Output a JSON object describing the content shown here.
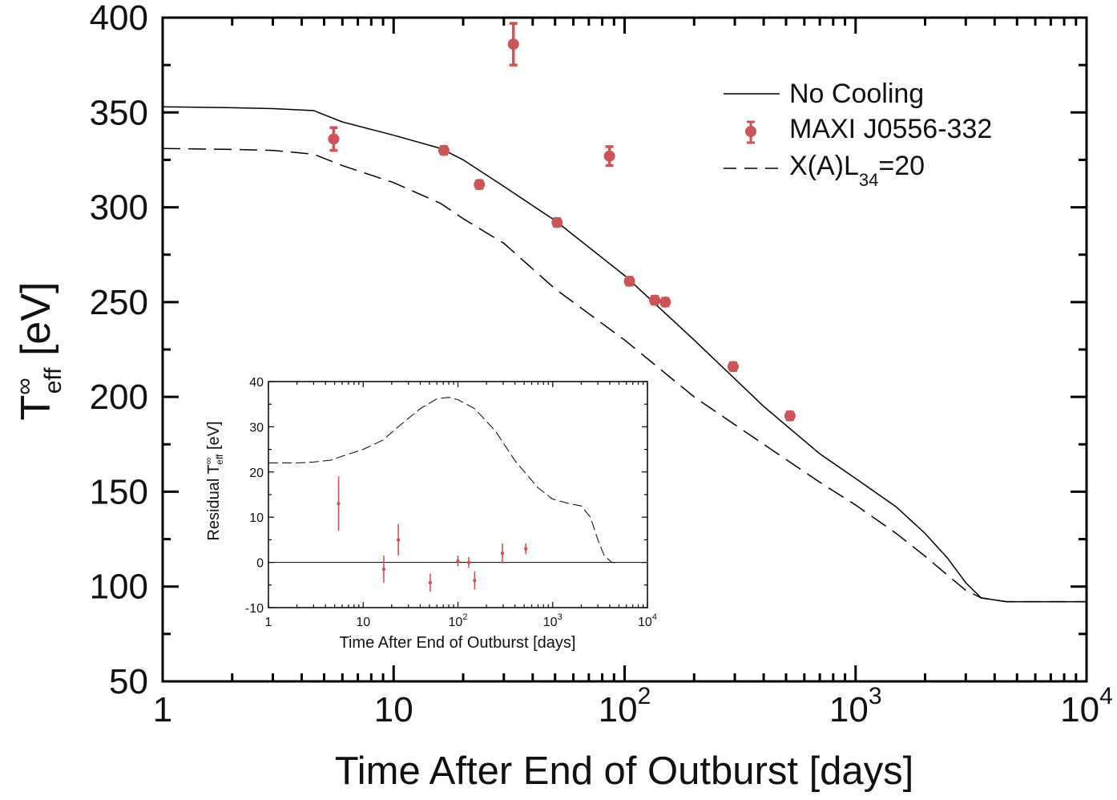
{
  "chart_data": [
    {
      "type": "line",
      "name": "main-panel",
      "xscale": "log",
      "xlim": [
        1,
        10000
      ],
      "ylim": [
        50,
        400
      ],
      "xlabel": "Time After End of Outburst [days]",
      "ylabel": {
        "main": "T",
        "sup": "∞",
        "sub": "eff",
        "unit": " [eV]"
      },
      "xticks": [
        {
          "value": 1,
          "base": "1",
          "exp": ""
        },
        {
          "value": 10,
          "base": "10",
          "exp": ""
        },
        {
          "value": 100,
          "base": "10",
          "exp": "2"
        },
        {
          "value": 1000,
          "base": "10",
          "exp": "3"
        },
        {
          "value": 10000,
          "base": "10",
          "exp": "4"
        }
      ],
      "yticks": [
        50,
        100,
        150,
        200,
        250,
        300,
        350,
        400
      ],
      "legend": {
        "position": "top-right",
        "entries": [
          {
            "label": "No Cooling",
            "style": "solid"
          },
          {
            "label": "MAXI J0556-332",
            "style": "marker"
          },
          {
            "label": "X(A)L",
            "sub": "34",
            "suffix": "=20",
            "style": "dashed"
          }
        ]
      },
      "series": [
        {
          "name": "No Cooling",
          "style": "solid",
          "color": "#000000",
          "points": [
            [
              1,
              353
            ],
            [
              2,
              352.5
            ],
            [
              3,
              352
            ],
            [
              4.5,
              351
            ],
            [
              6,
              345
            ],
            [
              10,
              338
            ],
            [
              16,
              331
            ],
            [
              20,
              325
            ],
            [
              30,
              311
            ],
            [
              50,
              293
            ],
            [
              100,
              264
            ],
            [
              200,
              230
            ],
            [
              400,
              195
            ],
            [
              700,
              170
            ],
            [
              1000,
              157
            ],
            [
              1500,
              142
            ],
            [
              2000,
              128
            ],
            [
              2500,
              115
            ],
            [
              3000,
              102
            ],
            [
              3500,
              94
            ],
            [
              4500,
              92
            ],
            [
              10000,
              92
            ]
          ]
        },
        {
          "name": "X(A)L34=20",
          "style": "dashed",
          "color": "#000000",
          "points": [
            [
              1,
              331
            ],
            [
              2,
              330.5
            ],
            [
              3,
              330
            ],
            [
              4.5,
              328
            ],
            [
              6,
              322
            ],
            [
              10,
              313
            ],
            [
              16,
              302
            ],
            [
              20,
              294
            ],
            [
              30,
              281
            ],
            [
              50,
              257
            ],
            [
              100,
              230
            ],
            [
              200,
              200
            ],
            [
              400,
              175
            ],
            [
              700,
              155
            ],
            [
              1000,
              143
            ],
            [
              1500,
              128
            ],
            [
              2000,
              116
            ],
            [
              2500,
              106
            ],
            [
              3000,
              98
            ],
            [
              3500,
              94
            ],
            [
              4500,
              92
            ],
            [
              10000,
              92
            ]
          ]
        },
        {
          "name": "MAXI J0556-332",
          "style": "marker",
          "color": "#cc5555",
          "points": [
            {
              "x": 5.5,
              "y": 336,
              "err": 6
            },
            {
              "x": 16.5,
              "y": 330,
              "err": 2
            },
            {
              "x": 23.5,
              "y": 312,
              "err": 2
            },
            {
              "x": 33,
              "y": 386,
              "err": 11
            },
            {
              "x": 51,
              "y": 292,
              "err": 2
            },
            {
              "x": 86,
              "y": 327,
              "err": 5
            },
            {
              "x": 105,
              "y": 261,
              "err": 2
            },
            {
              "x": 135,
              "y": 251,
              "err": 2
            },
            {
              "x": 150,
              "y": 250,
              "err": 2
            },
            {
              "x": 295,
              "y": 216,
              "err": 2
            },
            {
              "x": 520,
              "y": 190,
              "err": 2
            }
          ]
        }
      ]
    },
    {
      "type": "line",
      "name": "inset-residuals",
      "xscale": "log",
      "xlim": [
        1,
        10000
      ],
      "ylim": [
        -10,
        40
      ],
      "xlabel": "Time After End of Outburst [days]",
      "ylabel": {
        "main": "Residual T",
        "sup": "∞",
        "sub": "eff",
        "unit": " [eV]"
      },
      "xticks": [
        {
          "value": 1,
          "base": "1",
          "exp": ""
        },
        {
          "value": 10,
          "base": "10",
          "exp": ""
        },
        {
          "value": 100,
          "base": "10",
          "exp": "2"
        },
        {
          "value": 1000,
          "base": "10",
          "exp": "3"
        },
        {
          "value": 10000,
          "base": "10",
          "exp": "4"
        }
      ],
      "yticks": [
        -10,
        0,
        10,
        20,
        30,
        40
      ],
      "series": [
        {
          "name": "zero-line",
          "style": "solid",
          "color": "#000000",
          "points": [
            [
              1,
              0
            ],
            [
              10000,
              0
            ]
          ]
        },
        {
          "name": "difference",
          "style": "dashed",
          "color": "#000000",
          "points": [
            [
              1,
              22
            ],
            [
              2,
              22
            ],
            [
              3,
              22.2
            ],
            [
              4.5,
              22.6
            ],
            [
              6,
              23.5
            ],
            [
              10,
              25
            ],
            [
              16,
              27
            ],
            [
              25,
              30.5
            ],
            [
              40,
              34
            ],
            [
              60,
              36.2
            ],
            [
              80,
              36.5
            ],
            [
              100,
              36
            ],
            [
              150,
              34
            ],
            [
              250,
              29
            ],
            [
              400,
              22.5
            ],
            [
              700,
              16.5
            ],
            [
              1000,
              14
            ],
            [
              1500,
              13
            ],
            [
              2000,
              12.5
            ],
            [
              2500,
              10
            ],
            [
              3000,
              5
            ],
            [
              3500,
              1.5
            ],
            [
              4200,
              0
            ],
            [
              5000,
              0
            ]
          ]
        },
        {
          "name": "residual-points",
          "style": "marker",
          "color": "#cc5555",
          "points": [
            {
              "x": 5.5,
              "y": 13,
              "err": 6
            },
            {
              "x": 16.5,
              "y": -1.5,
              "err": 3
            },
            {
              "x": 23.5,
              "y": 5,
              "err": 3.5
            },
            {
              "x": 51,
              "y": -4.5,
              "err": 2
            },
            {
              "x": 100,
              "y": 0.3,
              "err": 1.2
            },
            {
              "x": 130,
              "y": 0,
              "err": 1.2
            },
            {
              "x": 150,
              "y": -4,
              "err": 2
            },
            {
              "x": 295,
              "y": 2,
              "err": 2.2
            },
            {
              "x": 520,
              "y": 3,
              "err": 1.2
            }
          ]
        }
      ]
    }
  ]
}
